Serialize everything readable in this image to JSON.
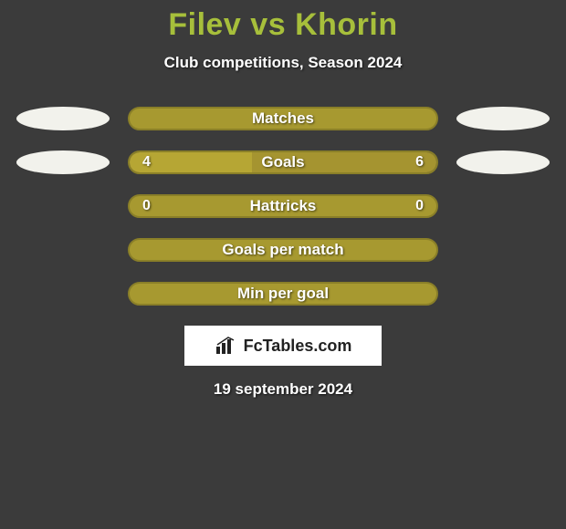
{
  "colors": {
    "background": "#3b3b3b",
    "accent": "#a79930",
    "ellipse": "#f2f2ec",
    "logo_bg": "#ffffff",
    "title_color": "#a7bf3b",
    "bar_border": "#8a7f28",
    "player1_bar": "#b6a634",
    "player2_bar": "#a59430",
    "text_white": "#ffffff"
  },
  "title": {
    "player1": "Filev",
    "vs": "vs",
    "player2": "Khorin",
    "fontsize": 34
  },
  "subtitle": "Club competitions, Season 2024",
  "rows": [
    {
      "label": "Matches",
      "show_ellipses": true,
      "show_values": false,
      "left_val": "",
      "right_val": "",
      "left_pct": 50,
      "right_pct": 50,
      "full_accent": true
    },
    {
      "label": "Goals",
      "show_ellipses": true,
      "show_values": true,
      "left_val": "4",
      "right_val": "6",
      "left_pct": 40,
      "right_pct": 60,
      "full_accent": false
    },
    {
      "label": "Hattricks",
      "show_ellipses": false,
      "show_values": true,
      "left_val": "0",
      "right_val": "0",
      "left_pct": 50,
      "right_pct": 50,
      "full_accent": true
    },
    {
      "label": "Goals per match",
      "show_ellipses": false,
      "show_values": false,
      "left_val": "",
      "right_val": "",
      "left_pct": 50,
      "right_pct": 50,
      "full_accent": true
    },
    {
      "label": "Min per goal",
      "show_ellipses": false,
      "show_values": false,
      "left_val": "",
      "right_val": "",
      "left_pct": 50,
      "right_pct": 50,
      "full_accent": true
    }
  ],
  "logo_text": "FcTables.com",
  "date": "19 september 2024"
}
